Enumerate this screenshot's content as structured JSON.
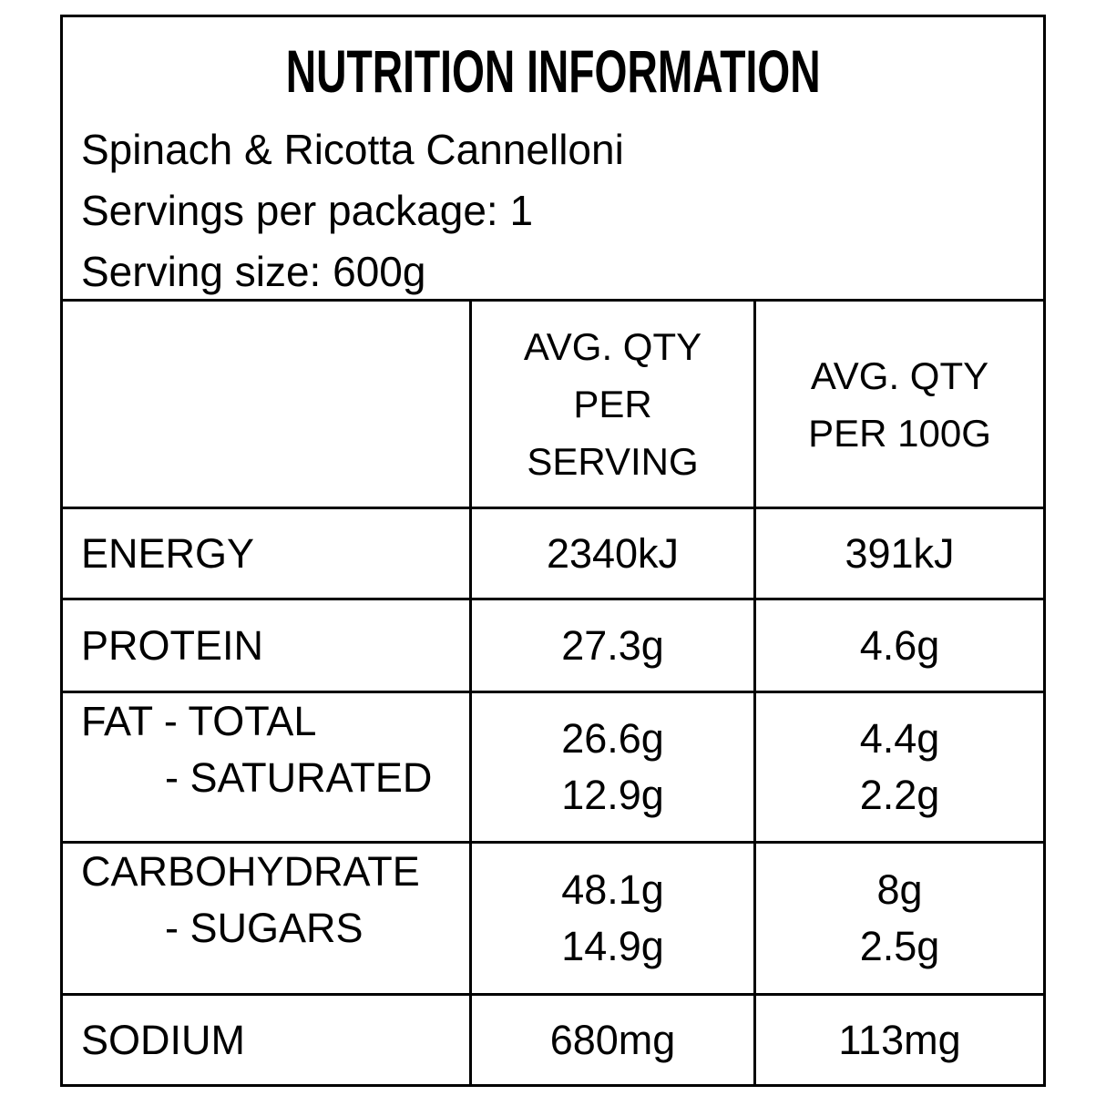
{
  "label": {
    "title": "NUTRITION INFORMATION",
    "product_name": "Spinach & Ricotta Cannelloni",
    "servings_per_package": "Servings per package: 1",
    "serving_size": "Serving size: 600g",
    "columns": {
      "item": "",
      "per_serving": "AVG. QTY\nPER\nSERVING",
      "per_100g": "AVG. QTY\nPER 100G"
    },
    "rows": [
      {
        "label": "ENERGY",
        "per_serving": "2340kJ",
        "per_100g": "391kJ"
      },
      {
        "label": "PROTEIN",
        "per_serving": "27.3g",
        "per_100g": "4.6g"
      },
      {
        "label": "FAT - TOTAL",
        "sub_label": "- SATURATED",
        "per_serving": "26.6g",
        "per_serving_sub": "12.9g",
        "per_100g": "4.4g",
        "per_100g_sub": "2.2g"
      },
      {
        "label": "CARBOHYDRATE",
        "sub_label": "- SUGARS",
        "per_serving": "48.1g",
        "per_serving_sub": "14.9g",
        "per_100g": "8g",
        "per_100g_sub": "2.5g"
      },
      {
        "label": "SODIUM",
        "per_serving": "680mg",
        "per_100g": "113mg"
      }
    ],
    "colors": {
      "text": "#000000",
      "background": "#ffffff",
      "border": "#000000"
    }
  }
}
